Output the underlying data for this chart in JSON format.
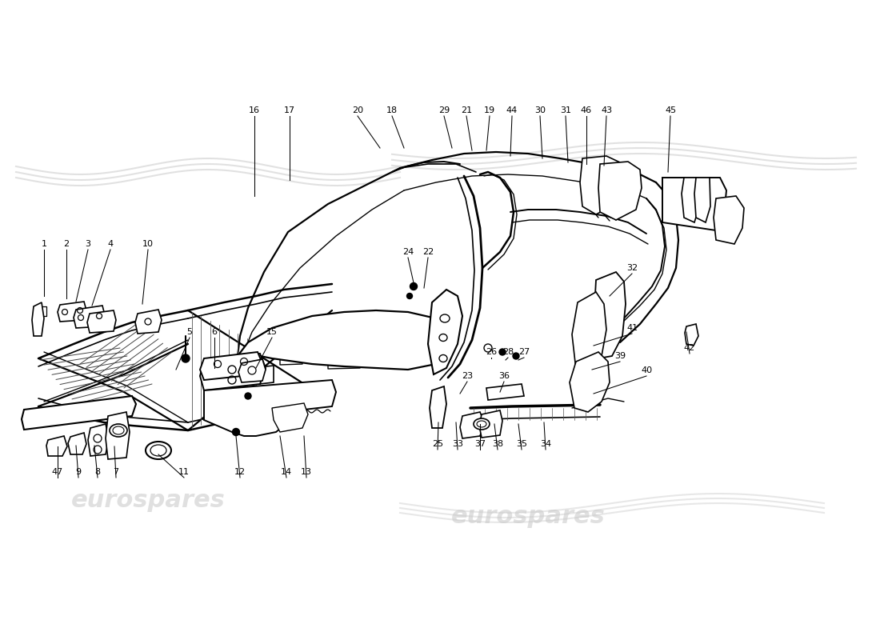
{
  "bg": "#ffffff",
  "lc": "#000000",
  "wm_color": "#c0c0c0",
  "wm_alpha": 0.4,
  "label_fs": 8,
  "lw_main": 1.4,
  "lw_thin": 0.9,
  "annotations": [
    [
      "16",
      318,
      143,
      318,
      245
    ],
    [
      "17",
      362,
      143,
      362,
      225
    ],
    [
      "20",
      447,
      143,
      475,
      185
    ],
    [
      "18",
      490,
      143,
      505,
      185
    ],
    [
      "29",
      555,
      143,
      565,
      185
    ],
    [
      "21",
      583,
      143,
      590,
      188
    ],
    [
      "19",
      612,
      143,
      608,
      188
    ],
    [
      "44",
      640,
      143,
      638,
      195
    ],
    [
      "30",
      675,
      143,
      678,
      198
    ],
    [
      "31",
      707,
      143,
      710,
      203
    ],
    [
      "46",
      733,
      143,
      733,
      205
    ],
    [
      "43",
      758,
      143,
      755,
      207
    ],
    [
      "45",
      838,
      143,
      835,
      215
    ],
    [
      "1",
      55,
      310,
      55,
      370
    ],
    [
      "2",
      83,
      310,
      83,
      373
    ],
    [
      "3",
      110,
      310,
      95,
      377
    ],
    [
      "4",
      138,
      310,
      115,
      382
    ],
    [
      "10",
      185,
      310,
      178,
      380
    ],
    [
      "5",
      237,
      420,
      220,
      462
    ],
    [
      "6",
      268,
      420,
      268,
      460
    ],
    [
      "15",
      340,
      420,
      320,
      460
    ],
    [
      "47",
      72,
      595,
      72,
      558
    ],
    [
      "9",
      98,
      595,
      95,
      557
    ],
    [
      "8",
      122,
      595,
      118,
      557
    ],
    [
      "7",
      145,
      595,
      143,
      558
    ],
    [
      "11",
      230,
      595,
      198,
      568
    ],
    [
      "12",
      300,
      595,
      295,
      545
    ],
    [
      "14",
      358,
      595,
      350,
      545
    ],
    [
      "13",
      383,
      595,
      380,
      545
    ],
    [
      "32",
      790,
      340,
      762,
      370
    ],
    [
      "41",
      790,
      415,
      742,
      432
    ],
    [
      "39",
      775,
      450,
      740,
      462
    ],
    [
      "40",
      808,
      468,
      742,
      492
    ],
    [
      "42",
      862,
      440,
      858,
      415
    ],
    [
      "24",
      510,
      320,
      518,
      358
    ],
    [
      "22",
      535,
      320,
      530,
      360
    ],
    [
      "26",
      614,
      445,
      614,
      448
    ],
    [
      "28",
      635,
      445,
      632,
      450
    ],
    [
      "27",
      655,
      445,
      648,
      450
    ],
    [
      "23",
      584,
      475,
      575,
      492
    ],
    [
      "36",
      630,
      475,
      625,
      490
    ],
    [
      "25",
      547,
      560,
      548,
      528
    ],
    [
      "33",
      572,
      560,
      570,
      528
    ],
    [
      "37",
      600,
      560,
      600,
      530
    ],
    [
      "38",
      622,
      560,
      618,
      530
    ],
    [
      "35",
      652,
      560,
      648,
      530
    ],
    [
      "34",
      682,
      560,
      680,
      528
    ]
  ]
}
